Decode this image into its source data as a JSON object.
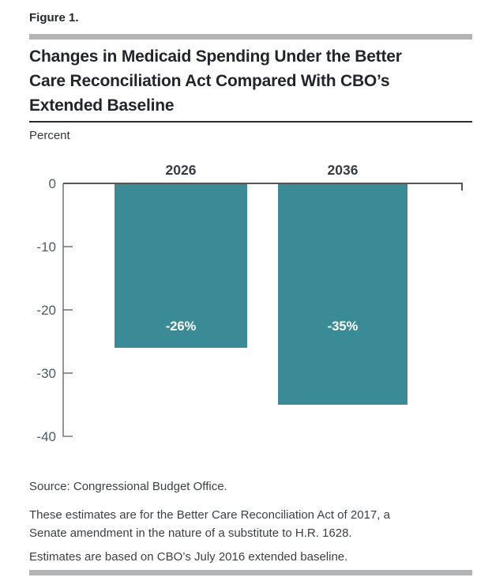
{
  "figure_label": "Figure 1.",
  "title": {
    "lines": [
      "Changes in Medicaid Spending Under the Better",
      "Care Reconciliation Act Compared With CBO’s",
      "Extended Baseline"
    ]
  },
  "unit_label": "Percent",
  "chart_data": {
    "type": "bar",
    "categories": [
      "2026",
      "2036"
    ],
    "values": [
      -26,
      -35
    ],
    "bar_labels": [
      "-26%",
      "-35%"
    ],
    "title": "Changes in Medicaid Spending Under the Better Care Reconciliation Act Compared With CBO’s Extended Baseline",
    "xlabel": "",
    "ylabel": "Percent",
    "ylim": [
      -40,
      0
    ],
    "yticks": [
      0,
      -10,
      -20,
      -30,
      -40
    ],
    "ytick_labels": [
      "0",
      "-10",
      "-20",
      "-30",
      "-40"
    ],
    "grid": false,
    "legend": false,
    "bar_color": "#3a8b95",
    "bar_label_color": "#ffffff",
    "value_label_y": -22.5
  },
  "notes": [
    {
      "lines": [
        "Source: Congressional Budget Office."
      ]
    },
    {
      "lines": [
        "These estimates are for the Better Care Reconciliation Act of 2017, a",
        "Senate amendment in the nature of a substitute to H.R. 1628."
      ]
    },
    {
      "lines": [
        "Estimates are based on CBO’s July 2016 extended baseline."
      ]
    }
  ]
}
